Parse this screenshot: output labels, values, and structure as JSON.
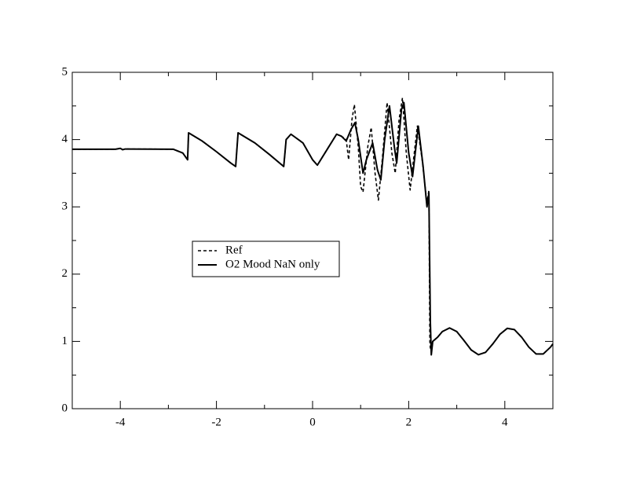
{
  "chart_data": {
    "type": "line",
    "xlim": [
      -5,
      5
    ],
    "ylim": [
      0,
      5
    ],
    "xticks": [
      -4,
      -2,
      0,
      2,
      4
    ],
    "yticks": [
      0,
      1,
      2,
      3,
      4,
      5
    ],
    "xminorticks": [
      -5,
      -3,
      -1,
      1,
      3,
      5
    ],
    "yminorticks": [
      0.5,
      1.5,
      2.5,
      3.5,
      4.5
    ],
    "legend": "center-left",
    "series": [
      {
        "name": "Ref",
        "color": "#000000",
        "dash": "4,3",
        "x": [
          -5,
          -4.1,
          -4.0,
          -3.95,
          -3.9,
          -2.9,
          -2.7,
          -2.6,
          -2.58,
          -2.3,
          -2.0,
          -1.7,
          -1.6,
          -1.55,
          -1.2,
          -0.9,
          -0.6,
          -0.55,
          -0.45,
          -0.2,
          0,
          0.1,
          0.3,
          0.5,
          0.6,
          0.7,
          0.75,
          0.82,
          0.87,
          0.95,
          1.0,
          1.05,
          1.15,
          1.22,
          1.3,
          1.37,
          1.45,
          1.55,
          1.65,
          1.72,
          1.8,
          1.87,
          1.95,
          2.03,
          2.1,
          2.18,
          2.28,
          2.38,
          2.42,
          2.44,
          2.45,
          2.5,
          2.6,
          2.7,
          2.85,
          3.0,
          3.15,
          3.3,
          3.45,
          3.6,
          3.75,
          3.9,
          4.05,
          4.2,
          4.35,
          4.5,
          4.65,
          4.8,
          4.95,
          5.0
        ],
        "values": [
          3.857,
          3.857,
          3.87,
          3.85,
          3.86,
          3.857,
          3.8,
          3.7,
          4.1,
          3.98,
          3.82,
          3.65,
          3.6,
          4.1,
          3.95,
          3.78,
          3.6,
          4.0,
          4.08,
          3.95,
          3.7,
          3.62,
          3.85,
          4.08,
          4.05,
          4.0,
          3.7,
          4.3,
          4.52,
          3.9,
          3.3,
          3.22,
          3.9,
          4.18,
          3.5,
          3.1,
          3.7,
          4.55,
          3.8,
          3.5,
          4.3,
          4.62,
          3.8,
          3.25,
          3.7,
          4.2,
          3.7,
          3.05,
          3.25,
          1.0,
          0.9,
          1.0,
          1.062,
          1.146,
          1.2,
          1.146,
          1.013,
          0.873,
          0.802,
          0.838,
          0.963,
          1.107,
          1.194,
          1.175,
          1.062,
          0.915,
          0.814,
          0.814,
          0.915,
          0.963
        ]
      },
      {
        "name": "O2 Mood NaN only",
        "color": "#000000",
        "dash": "none",
        "x": [
          -5,
          -4.1,
          -4.0,
          -3.95,
          -3.9,
          -2.9,
          -2.7,
          -2.6,
          -2.58,
          -2.3,
          -2.0,
          -1.7,
          -1.6,
          -1.55,
          -1.2,
          -0.9,
          -0.6,
          -0.55,
          -0.45,
          -0.2,
          0,
          0.1,
          0.3,
          0.5,
          0.6,
          0.7,
          0.8,
          0.88,
          0.95,
          1.05,
          1.12,
          1.25,
          1.35,
          1.42,
          1.5,
          1.6,
          1.7,
          1.75,
          1.85,
          1.9,
          2.0,
          2.08,
          2.2,
          2.3,
          2.38,
          2.42,
          2.45,
          2.47,
          2.5,
          2.6,
          2.7,
          2.85,
          3.0,
          3.15,
          3.3,
          3.45,
          3.6,
          3.75,
          3.9,
          4.05,
          4.2,
          4.35,
          4.5,
          4.65,
          4.8,
          4.95,
          5.0
        ],
        "values": [
          3.857,
          3.857,
          3.87,
          3.85,
          3.86,
          3.857,
          3.8,
          3.7,
          4.1,
          3.98,
          3.82,
          3.65,
          3.6,
          4.1,
          3.95,
          3.78,
          3.6,
          4.0,
          4.08,
          3.95,
          3.7,
          3.62,
          3.85,
          4.08,
          4.05,
          3.98,
          4.15,
          4.25,
          4.0,
          3.5,
          3.7,
          3.95,
          3.55,
          3.4,
          4.0,
          4.5,
          3.9,
          3.65,
          4.45,
          4.55,
          3.8,
          3.45,
          4.2,
          3.6,
          3.0,
          3.2,
          1.3,
          0.8,
          1.0,
          1.062,
          1.146,
          1.2,
          1.146,
          1.013,
          0.873,
          0.802,
          0.838,
          0.963,
          1.107,
          1.194,
          1.175,
          1.062,
          0.915,
          0.814,
          0.814,
          0.915,
          0.963
        ]
      }
    ]
  }
}
